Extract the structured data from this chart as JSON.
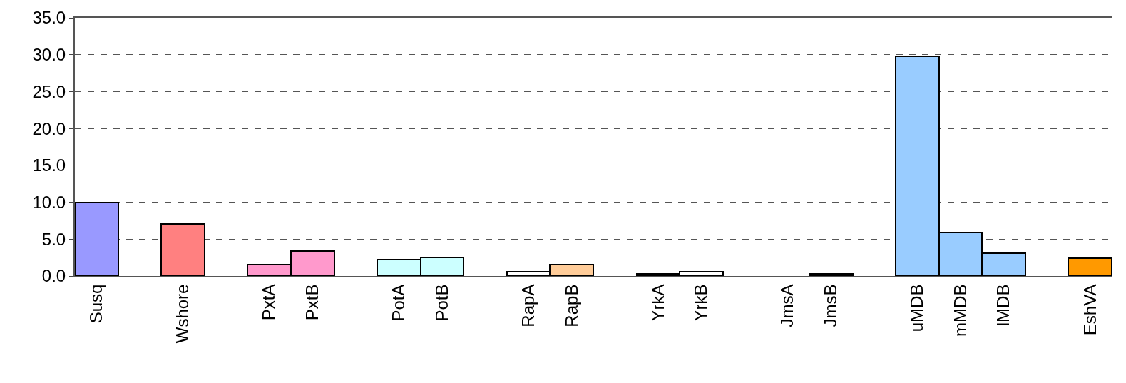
{
  "chart_data": {
    "type": "bar",
    "categories": [
      "Susq",
      null,
      "Wshore",
      null,
      "PxtA",
      "PxtB",
      null,
      "PotA",
      "PotB",
      null,
      "RapA",
      "RapB",
      null,
      "YrkA",
      "YrkB",
      null,
      "JmsA",
      "JmsB",
      null,
      "uMDB",
      "mMDB",
      "lMDB",
      null,
      "EshVA"
    ],
    "values": [
      10.0,
      null,
      7.1,
      null,
      1.5,
      3.4,
      null,
      2.2,
      2.5,
      null,
      0.6,
      1.5,
      null,
      0.3,
      0.6,
      null,
      null,
      0.3,
      null,
      29.8,
      5.9,
      3.1,
      null,
      2.4
    ],
    "colors": [
      "#9999ff",
      null,
      "#ff8080",
      null,
      "#ff99cc",
      "#ff99cc",
      null,
      "#ccffff",
      "#ccffff",
      null,
      "#ffffff",
      "#ffcc99",
      null,
      "#ffffff",
      "#ffffff",
      null,
      null,
      "#ffffff",
      null,
      "#99ccff",
      "#99ccff",
      "#99ccff",
      null,
      "#ff9900"
    ],
    "ylim": [
      0,
      35
    ],
    "yticks": [
      {
        "value": 0,
        "label": "0.0"
      },
      {
        "value": 5,
        "label": "5.0"
      },
      {
        "value": 10,
        "label": "10.0"
      },
      {
        "value": 15,
        "label": "15.0"
      },
      {
        "value": 20,
        "label": "20.0"
      },
      {
        "value": 25,
        "label": "25.0"
      },
      {
        "value": 30,
        "label": "30.0"
      },
      {
        "value": 35,
        "label": "35.0"
      }
    ],
    "grid": "y"
  }
}
